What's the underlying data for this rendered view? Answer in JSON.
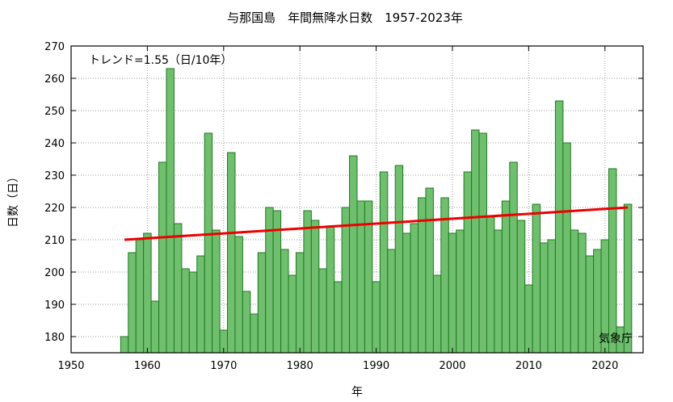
{
  "chart_data": {
    "type": "bar",
    "title": "与那国島　年間無降水日数　1957-2023年",
    "xlabel": "年",
    "ylabel": "日数（日）",
    "annotation": "トレンド=1.55（日/10年）",
    "source": "気象庁",
    "xlim": [
      1950,
      2025
    ],
    "ylim": [
      175,
      270
    ],
    "xticks": [
      1950,
      1960,
      1970,
      1980,
      1990,
      2000,
      2010,
      2020
    ],
    "yticks": [
      180,
      190,
      200,
      210,
      220,
      230,
      240,
      250,
      260,
      270
    ],
    "grid": true,
    "bar_color": "#6fbf6f",
    "bar_edge_color": "#1f7a1f",
    "trend_color": "#ee0000",
    "years": [
      1957,
      1958,
      1959,
      1960,
      1961,
      1962,
      1963,
      1964,
      1965,
      1966,
      1967,
      1968,
      1969,
      1970,
      1971,
      1972,
      1973,
      1974,
      1975,
      1976,
      1977,
      1978,
      1979,
      1980,
      1981,
      1982,
      1983,
      1984,
      1985,
      1986,
      1987,
      1988,
      1989,
      1990,
      1991,
      1992,
      1993,
      1994,
      1995,
      1996,
      1997,
      1998,
      1999,
      2000,
      2001,
      2002,
      2003,
      2004,
      2005,
      2006,
      2007,
      2008,
      2009,
      2010,
      2011,
      2012,
      2013,
      2014,
      2015,
      2016,
      2017,
      2018,
      2019,
      2020,
      2021,
      2022,
      2023
    ],
    "values": [
      180,
      206,
      210,
      212,
      191,
      234,
      263,
      215,
      201,
      200,
      205,
      243,
      213,
      182,
      237,
      211,
      194,
      187,
      206,
      220,
      219,
      207,
      199,
      206,
      219,
      216,
      201,
      214,
      197,
      220,
      236,
      222,
      222,
      197,
      231,
      207,
      233,
      212,
      215,
      223,
      226,
      199,
      223,
      212,
      213,
      231,
      244,
      243,
      217,
      213,
      222,
      234,
      216,
      196,
      221,
      209,
      210,
      253,
      240,
      213,
      212,
      205,
      207,
      210,
      232,
      183,
      221
    ],
    "trend": {
      "x": [
        1957,
        2023
      ],
      "y": [
        210,
        220
      ]
    }
  }
}
